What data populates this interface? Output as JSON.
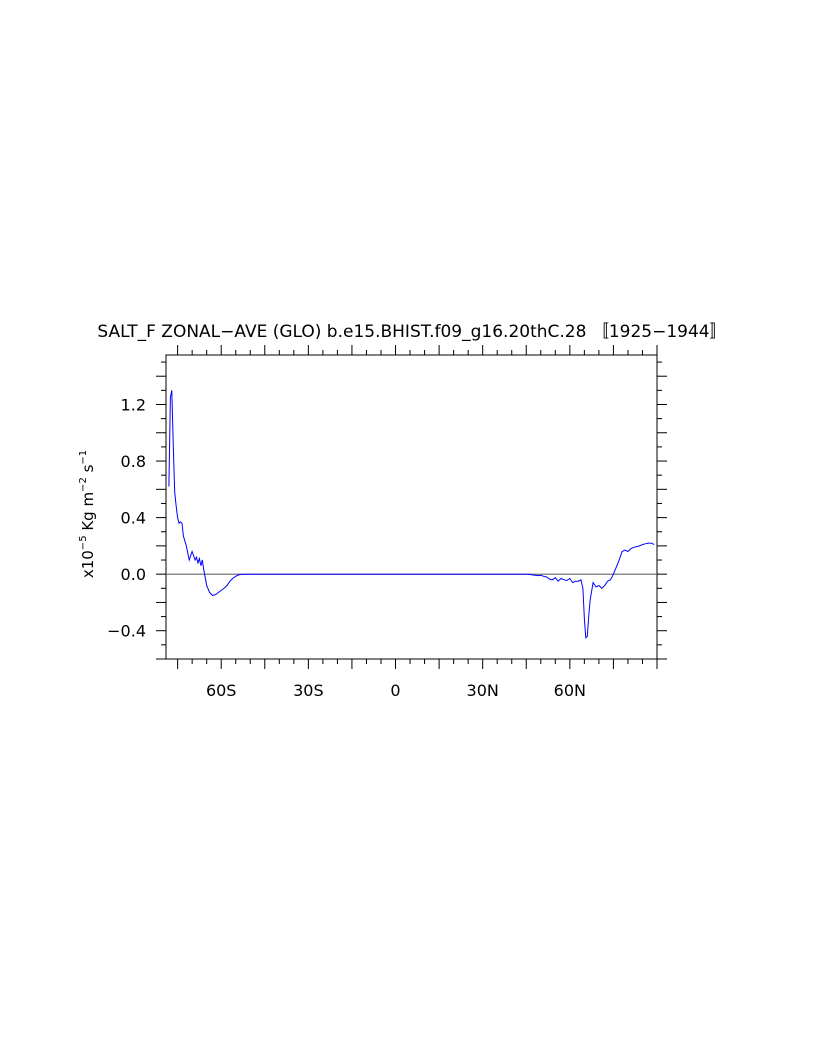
{
  "chart_data": {
    "type": "line",
    "title": "SALT_F ZONAL−AVE (GLO) b.e15.BHIST.f09_g16.20thC.28 〚1925−1944〛",
    "ylabel_base": "x10",
    "ylabel_exp": "−5",
    "ylabel_units_a": " Kg m",
    "ylabel_exp2": "−2",
    "ylabel_units_b": " s",
    "ylabel_exp3": "−1",
    "xlim": [
      -79,
      90
    ],
    "ylim": [
      -0.6,
      1.55
    ],
    "x_ticks": [
      {
        "value": -60,
        "label": "60S"
      },
      {
        "value": -30,
        "label": "30S"
      },
      {
        "value": 0,
        "label": "0"
      },
      {
        "value": 30,
        "label": "30N"
      },
      {
        "value": 60,
        "label": "60N"
      }
    ],
    "y_ticks": [
      {
        "value": -0.4,
        "label": "−0.4"
      },
      {
        "value": 0.0,
        "label": "0.0"
      },
      {
        "value": 0.4,
        "label": "0.4"
      },
      {
        "value": 0.8,
        "label": "0.8"
      },
      {
        "value": 1.2,
        "label": "1.2"
      }
    ],
    "zero_line": true,
    "series": [
      {
        "color": "#0000ff",
        "x": [
          -78,
          -77.5,
          -77,
          -76.5,
          -76,
          -75.5,
          -75,
          -74.5,
          -74,
          -73.5,
          -73,
          -72,
          -71,
          -70,
          -69.5,
          -69,
          -68.5,
          -68,
          -67.5,
          -67,
          -66.5,
          -66,
          -65,
          -64,
          -63,
          -62,
          -61,
          -60,
          -59,
          -58,
          -57,
          -56,
          -55,
          -54,
          -53,
          -50,
          -40,
          -30,
          -20,
          -10,
          0,
          10,
          20,
          30,
          38,
          42,
          45,
          46,
          47,
          48,
          49,
          50,
          51,
          52,
          53,
          54,
          55,
          56,
          57,
          58,
          59,
          60,
          61,
          62,
          63,
          63.8,
          64.5,
          65,
          65.5,
          66,
          66.5,
          67,
          68,
          69,
          70,
          71,
          72,
          73,
          74,
          75,
          76,
          77,
          78,
          79,
          80,
          81,
          82,
          83,
          84,
          85,
          86,
          87,
          88,
          89
        ],
        "values": [
          0.62,
          1.25,
          1.3,
          0.9,
          0.58,
          0.48,
          0.4,
          0.36,
          0.37,
          0.36,
          0.27,
          0.2,
          0.1,
          0.16,
          0.13,
          0.1,
          0.12,
          0.08,
          0.11,
          0.06,
          0.1,
          0.03,
          -0.08,
          -0.13,
          -0.15,
          -0.145,
          -0.13,
          -0.115,
          -0.1,
          -0.08,
          -0.05,
          -0.03,
          -0.015,
          -0.005,
          -0.002,
          0.0,
          0.0,
          0.0,
          0.0,
          0.0,
          0.0,
          0.0,
          0.0,
          0.0,
          0.0,
          0.0,
          0.0,
          -0.002,
          -0.005,
          -0.008,
          -0.01,
          -0.008,
          -0.015,
          -0.02,
          -0.035,
          -0.04,
          -0.025,
          -0.05,
          -0.03,
          -0.04,
          -0.045,
          -0.03,
          -0.06,
          -0.05,
          -0.05,
          -0.04,
          -0.1,
          -0.32,
          -0.45,
          -0.44,
          -0.3,
          -0.18,
          -0.06,
          -0.09,
          -0.08,
          -0.1,
          -0.08,
          -0.05,
          -0.04,
          0.0,
          0.05,
          0.1,
          0.16,
          0.17,
          0.16,
          0.18,
          0.19,
          0.195,
          0.2,
          0.21,
          0.215,
          0.22,
          0.22,
          0.21
        ]
      }
    ]
  }
}
